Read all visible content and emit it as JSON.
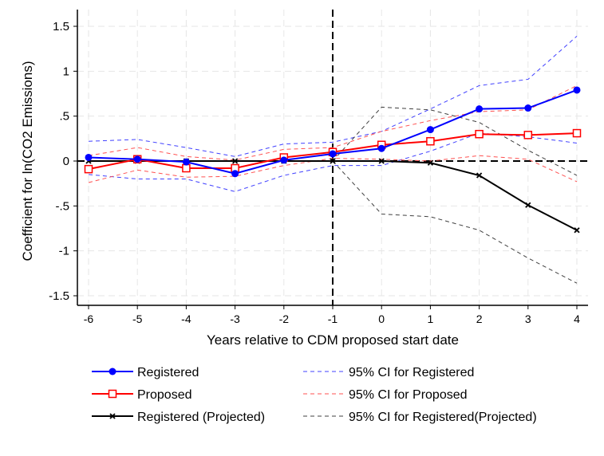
{
  "chart_data": {
    "type": "line",
    "xlabel": "Years relative to CDM proposed start date",
    "ylabel": "Coefficient for ln(CO2 Emissions)",
    "xlim": [
      -6,
      4
    ],
    "ylim": [
      -1.5,
      1.5
    ],
    "x_ticks": [
      "-6",
      "-5",
      "-4",
      "-3",
      "-2",
      "-1",
      "0",
      "1",
      "2",
      "3",
      "4"
    ],
    "y_ticks": [
      {
        "v": 1.5,
        "label": "1.5"
      },
      {
        "v": 1,
        "label": "1"
      },
      {
        "v": 0.5,
        "label": ".5"
      },
      {
        "v": 0,
        "label": "0"
      },
      {
        "v": -0.5,
        "label": "-.5"
      },
      {
        "v": -1,
        "label": "-1"
      },
      {
        "v": -1.5,
        "label": "-1.5"
      }
    ],
    "grid": true,
    "legend_position": "bottom",
    "reference_lines": {
      "x": -1,
      "y": 0
    },
    "x": [
      -6,
      -5,
      -4,
      -3,
      -2,
      -1,
      0,
      1,
      2,
      3,
      4
    ],
    "series": [
      {
        "name": "Registered",
        "color": "#0000ff",
        "marker": "circle",
        "style": "solid",
        "values": [
          0.04,
          0.02,
          -0.01,
          -0.14,
          0.01,
          0.08,
          0.14,
          0.35,
          0.58,
          0.59,
          0.79
        ]
      },
      {
        "name": "Proposed",
        "color": "#ff0000",
        "marker": "square",
        "style": "solid",
        "values": [
          -0.09,
          0.02,
          -0.08,
          -0.08,
          0.04,
          0.1,
          0.18,
          0.22,
          0.3,
          0.29,
          0.31
        ]
      },
      {
        "name": "Registered (Projected)",
        "color": "#000000",
        "marker": "x",
        "style": "solid",
        "values": [
          0,
          0,
          0,
          0,
          0,
          0,
          0,
          -0.02,
          -0.16,
          -0.49,
          -0.77
        ]
      },
      {
        "name": "95% CI for Registered",
        "color": "#4040ff",
        "style": "dashed",
        "upper": [
          0.22,
          0.24,
          0.15,
          0.05,
          0.19,
          0.21,
          0.33,
          0.58,
          0.84,
          0.91,
          1.39
        ],
        "lower": [
          -0.15,
          -0.2,
          -0.2,
          -0.34,
          -0.16,
          -0.05,
          -0.05,
          0.11,
          0.31,
          0.27,
          0.2
        ]
      },
      {
        "name": "95% CI for Proposed",
        "color": "#ff5050",
        "style": "dashed",
        "upper": [
          0.06,
          0.15,
          0.05,
          0.01,
          0.13,
          0.15,
          0.33,
          0.45,
          0.55,
          0.57,
          0.84
        ],
        "lower": [
          -0.24,
          -0.1,
          -0.18,
          -0.17,
          -0.05,
          0.03,
          0.02,
          0.0,
          0.06,
          0.02,
          -0.23
        ]
      },
      {
        "name": "95% CI for Registered(Projected)",
        "color": "#404040",
        "style": "dashed",
        "upper": [
          null,
          null,
          null,
          null,
          null,
          0,
          0.6,
          0.57,
          0.43,
          0.12,
          -0.16
        ],
        "lower": [
          null,
          null,
          null,
          null,
          null,
          0,
          -0.59,
          -0.62,
          -0.77,
          -1.08,
          -1.36
        ]
      }
    ]
  }
}
